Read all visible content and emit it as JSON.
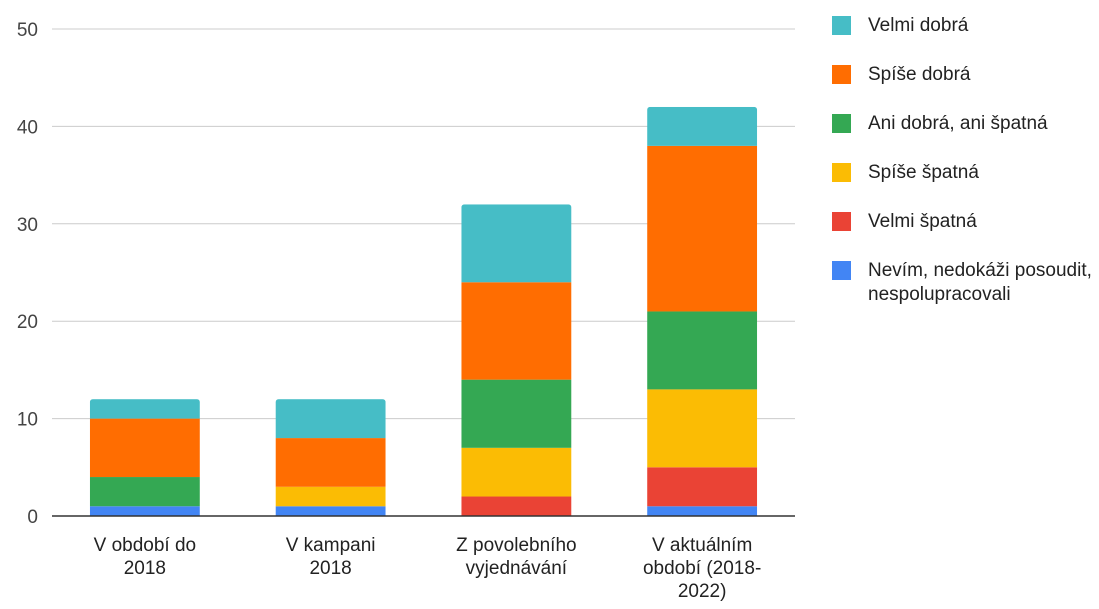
{
  "chart_data": {
    "type": "bar",
    "stacked": true,
    "categories": [
      [
        "V období do",
        "2018"
      ],
      [
        "V kampani",
        "2018"
      ],
      [
        "Z povolebního",
        "vyjednávání"
      ],
      [
        "V aktuálním",
        "období (2018-",
        "2022)"
      ]
    ],
    "series": [
      {
        "name": "Nevím, nedokáži posoudit, nespolupracovali",
        "color": "#4285f4",
        "values": [
          1,
          1,
          0,
          1
        ]
      },
      {
        "name": "Velmi špatná",
        "color": "#ea4335",
        "values": [
          0,
          0,
          2,
          4
        ]
      },
      {
        "name": "Spíše špatná",
        "color": "#fbbc04",
        "values": [
          0,
          2,
          5,
          8
        ]
      },
      {
        "name": "Ani dobrá, ani špatná",
        "color": "#34a853",
        "values": [
          3,
          0,
          7,
          8
        ]
      },
      {
        "name": "Spíše dobrá",
        "color": "#ff6d01",
        "values": [
          6,
          5,
          10,
          17
        ]
      },
      {
        "name": "Velmi dobrá",
        "color": "#46bdc6",
        "values": [
          2,
          4,
          8,
          4
        ]
      }
    ],
    "ylim": [
      0,
      50
    ],
    "yticks": [
      0,
      10,
      20,
      30,
      40,
      50
    ],
    "grid": true,
    "legend_position": "right",
    "legend_order": [
      5,
      4,
      3,
      2,
      1,
      0
    ]
  }
}
